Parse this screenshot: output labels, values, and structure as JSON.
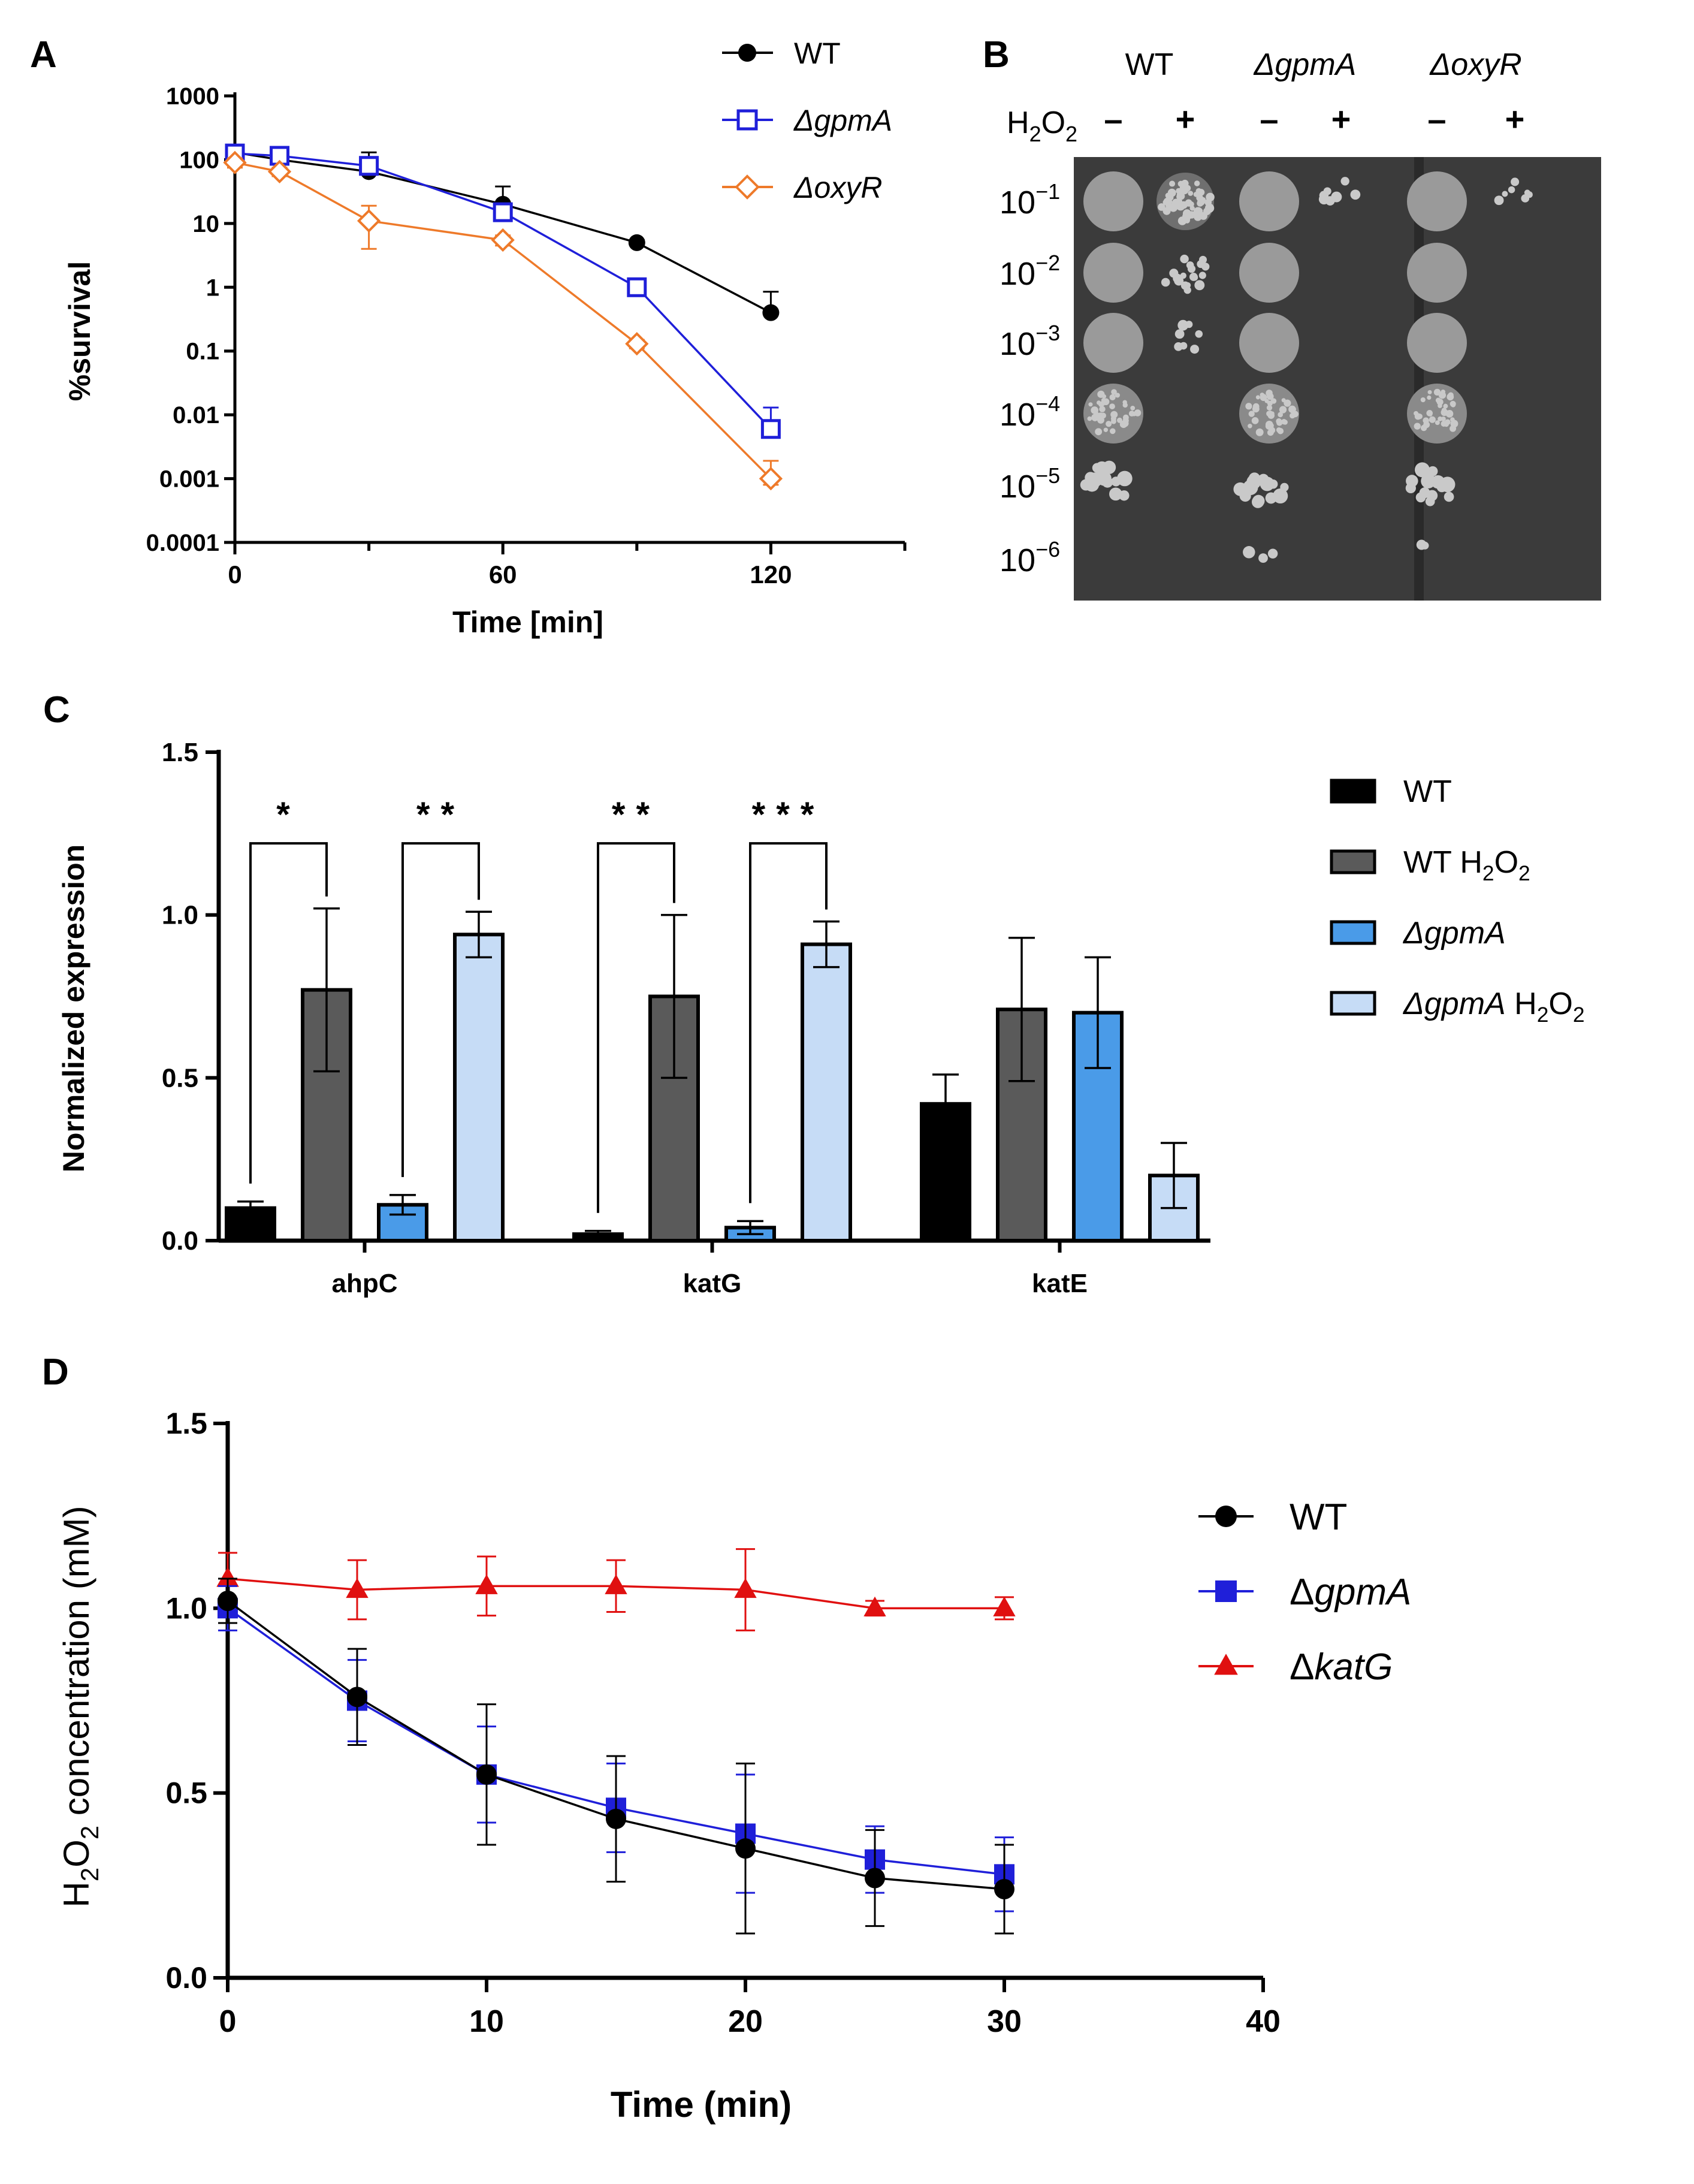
{
  "panel_labels": {
    "a": "A",
    "b": "B",
    "c": "C",
    "d": "D"
  },
  "colors": {
    "wt": "#000000",
    "gpmA": "#1f1fd9",
    "oxyR": "#ee7a2a",
    "katG_line": "#e01010",
    "bar_wt": "#000000",
    "bar_wt_h2o2": "#5a5a5a",
    "bar_gpmA": "#4a9be8",
    "bar_gpmA_h2o2": "#c6dcf6"
  },
  "chart_data": [
    {
      "id": "A",
      "type": "line",
      "xlabel": "Time [min]",
      "ylabel": "%survival",
      "x_ticks": [
        "0",
        "60",
        "120"
      ],
      "x_tick_values": [
        0,
        60,
        120
      ],
      "xlim": [
        0,
        150
      ],
      "y_scale": "log",
      "ylim": [
        0.0001,
        1000
      ],
      "y_ticks": [
        "0.0001",
        "0.001",
        "0.01",
        "0.1",
        "1",
        "10",
        "100",
        "1000"
      ],
      "legend_position": "top-right",
      "series": [
        {
          "name": "WT",
          "marker": "filled-circle",
          "x": [
            0,
            10,
            30,
            60,
            90,
            120
          ],
          "values": [
            130,
            100,
            65,
            20,
            5,
            0.4
          ],
          "err_up": [
            165,
            125,
            130,
            38,
            5.5,
            0.85
          ]
        },
        {
          "name": "ΔgpmA",
          "marker": "open-square",
          "x": [
            0,
            10,
            30,
            60,
            90,
            120
          ],
          "values": [
            125,
            115,
            80,
            15,
            1.0,
            0.006
          ],
          "err_up": [
            150,
            140,
            100,
            20,
            1.2,
            0.013
          ]
        },
        {
          "name": "ΔoxyR",
          "marker": "open-diamond",
          "x": [
            0,
            10,
            30,
            60,
            90,
            120
          ],
          "values": [
            90,
            65,
            11,
            5.5,
            0.13,
            0.001
          ],
          "err_up": [
            105,
            75,
            19,
            6.5,
            0.15,
            0.0019
          ],
          "err_down": [
            75,
            55,
            4,
            4.5,
            0.11,
            0.0008
          ]
        }
      ]
    },
    {
      "id": "C",
      "type": "bar",
      "ylabel": "Normalized expression",
      "categories": [
        "ahpC",
        "katG",
        "katE"
      ],
      "ylim": [
        0,
        1.5
      ],
      "y_ticks": [
        "0.0",
        "0.5",
        "1.0",
        "1.5"
      ],
      "legend_position": "right",
      "series": [
        {
          "name": "WT",
          "values": [
            0.1,
            0.02,
            0.42
          ],
          "errors": [
            0.02,
            0.01,
            0.09
          ]
        },
        {
          "name": "WT H2O2",
          "values": [
            0.77,
            0.75,
            0.71
          ],
          "errors": [
            0.25,
            0.25,
            0.22
          ]
        },
        {
          "name": "ΔgpmA",
          "values": [
            0.11,
            0.04,
            0.7
          ],
          "errors": [
            0.03,
            0.02,
            0.17
          ]
        },
        {
          "name": "ΔgpmA H2O2",
          "values": [
            0.94,
            0.91,
            0.2
          ],
          "errors": [
            0.07,
            0.07,
            0.1
          ]
        }
      ],
      "significance": [
        {
          "category": "ahpC",
          "from": "WT",
          "to": "WT H2O2",
          "label": "*"
        },
        {
          "category": "ahpC",
          "from": "ΔgpmA",
          "to": "ΔgpmA H2O2",
          "label": "**"
        },
        {
          "category": "katG",
          "from": "WT",
          "to": "WT H2O2",
          "label": "**"
        },
        {
          "category": "katG",
          "from": "ΔgpmA",
          "to": "ΔgpmA H2O2",
          "label": "***"
        }
      ]
    },
    {
      "id": "D",
      "type": "line",
      "xlabel": "Time (min)",
      "ylabel": "H2O2 concentration (mM)",
      "x_ticks": [
        "0",
        "10",
        "20",
        "30",
        "40"
      ],
      "xlim": [
        0,
        40
      ],
      "ylim": [
        0,
        1.5
      ],
      "y_ticks": [
        "0.0",
        "0.5",
        "1.0",
        "1.5"
      ],
      "legend_position": "right",
      "series": [
        {
          "name": "WT",
          "marker": "filled-circle",
          "x": [
            0,
            5,
            10,
            15,
            20,
            25,
            30
          ],
          "values": [
            1.02,
            0.76,
            0.55,
            0.43,
            0.35,
            0.27,
            0.24
          ],
          "errors": [
            0.06,
            0.13,
            0.19,
            0.17,
            0.23,
            0.13,
            0.12
          ]
        },
        {
          "name": "ΔgpmA",
          "marker": "filled-square",
          "x": [
            0,
            5,
            10,
            15,
            20,
            25,
            30
          ],
          "values": [
            1.0,
            0.75,
            0.55,
            0.46,
            0.39,
            0.32,
            0.28
          ],
          "errors": [
            0.06,
            0.11,
            0.13,
            0.12,
            0.16,
            0.09,
            0.1
          ]
        },
        {
          "name": "ΔkatG",
          "marker": "filled-triangle",
          "x": [
            0,
            5,
            10,
            15,
            20,
            25,
            30
          ],
          "values": [
            1.08,
            1.05,
            1.06,
            1.06,
            1.05,
            1.0,
            1.0
          ],
          "errors": [
            0.07,
            0.08,
            0.08,
            0.07,
            0.11,
            0.02,
            0.03
          ]
        }
      ]
    }
  ],
  "panel_b": {
    "strains": [
      "WT",
      "ΔgpmA",
      "ΔoxyR"
    ],
    "treatment_label": "H",
    "treatment_sub1": "2",
    "treatment_mid": "O",
    "treatment_sub2": "2",
    "minus": "–",
    "plus": "+",
    "dilution_base": "10",
    "dilution_exponents": [
      "−1",
      "−2",
      "−3",
      "−4",
      "−5",
      "−6"
    ],
    "growth_grid": [
      [
        "full",
        "sparse-dense",
        "full",
        "sparse-few",
        "full",
        "sparse-few"
      ],
      [
        "full",
        "sparse-some",
        "full",
        "none",
        "full",
        "none"
      ],
      [
        "full",
        "sparse-few",
        "full",
        "none",
        "full",
        "none"
      ],
      [
        "dense",
        "none",
        "dense",
        "none",
        "dense",
        "none"
      ],
      [
        "colonies",
        "none",
        "colonies",
        "none",
        "colonies",
        "none"
      ],
      [
        "none",
        "none",
        "few",
        "none",
        "few",
        "none"
      ]
    ]
  }
}
